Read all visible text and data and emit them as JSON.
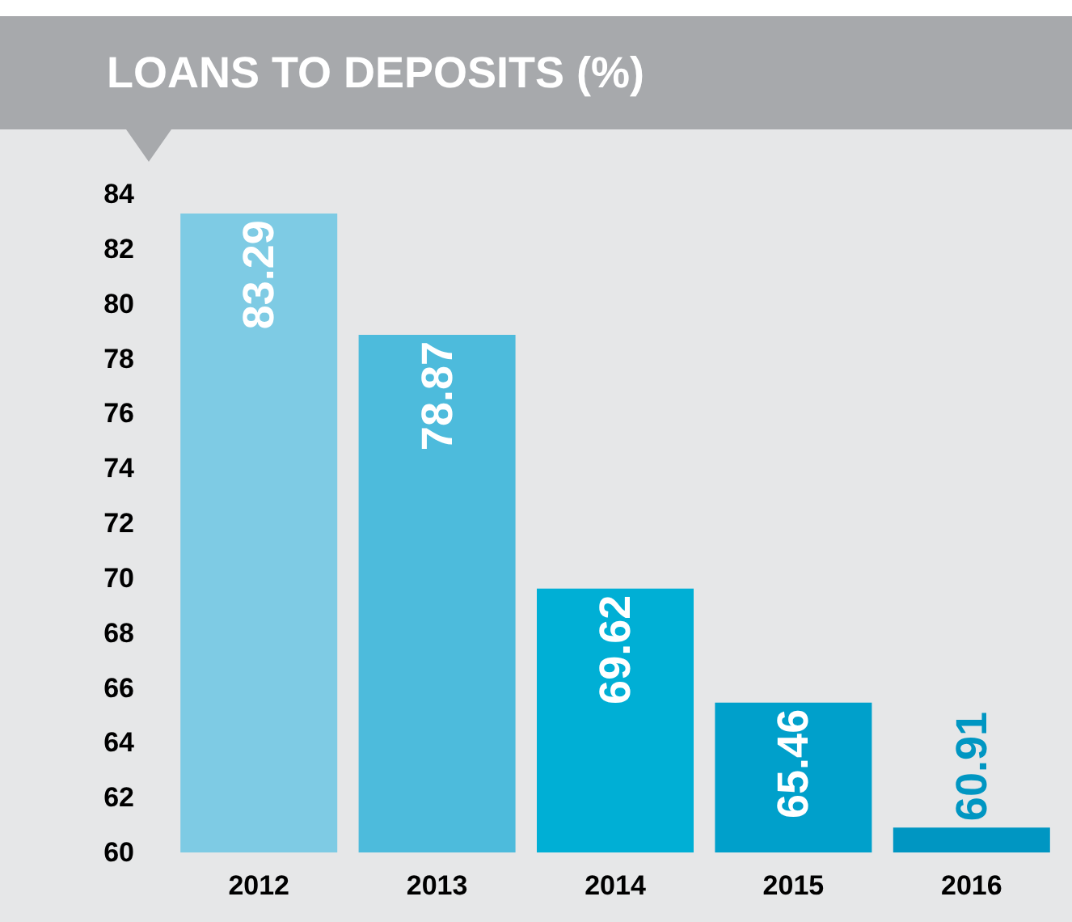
{
  "chart_data": {
    "type": "bar",
    "title": "LOANS TO DEPOSITS (%)",
    "categories": [
      "2012",
      "2013",
      "2014",
      "2015",
      "2016"
    ],
    "values": [
      83.29,
      78.87,
      69.62,
      65.46,
      60.91
    ],
    "colors": [
      "#7ecbe4",
      "#4dbbdc",
      "#00afd5",
      "#00a0cb",
      "#0096c2"
    ],
    "ylim": [
      60,
      84
    ],
    "yticks": [
      60,
      62,
      64,
      66,
      68,
      70,
      72,
      74,
      76,
      78,
      80,
      82,
      84
    ],
    "data_labels": true
  }
}
